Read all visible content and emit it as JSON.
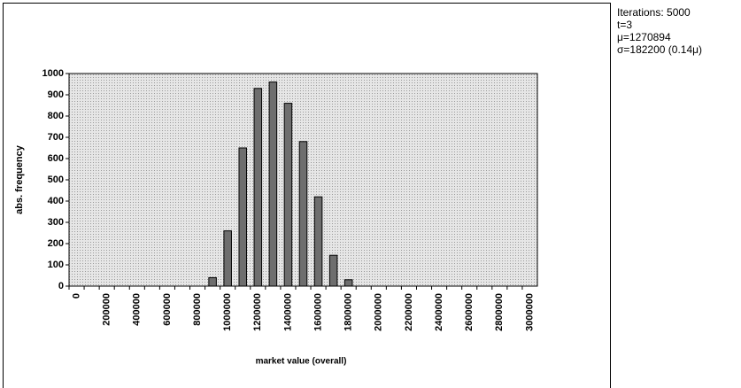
{
  "chart_data": {
    "type": "bar",
    "xlabel": "market value (overall)",
    "ylabel": "abs. frequency",
    "categories": [
      "0",
      null,
      "200000",
      null,
      "400000",
      null,
      "600000",
      null,
      "800000",
      null,
      "1000000",
      null,
      "1200000",
      null,
      "1400000",
      null,
      "1600000",
      null,
      "1800000",
      null,
      "2000000",
      null,
      "2200000",
      null,
      "2400000",
      null,
      "2600000",
      null,
      "2800000",
      null,
      "3000000"
    ],
    "values": [
      0,
      0,
      0,
      0,
      0,
      0,
      0,
      0,
      0,
      40,
      260,
      650,
      930,
      960,
      860,
      680,
      420,
      145,
      30,
      0,
      0,
      0,
      0,
      0,
      0,
      0,
      0,
      0,
      0,
      0,
      0
    ],
    "color": "#6e6e6e",
    "ylim": [
      0,
      1000
    ],
    "yticks": [
      0,
      100,
      200,
      300,
      400,
      500,
      600,
      700,
      800,
      900,
      1000
    ],
    "annotations": [
      "Iterations: 5000",
      "t=3",
      "μ=1270894",
      "σ=182200 (0.14μ)"
    ]
  }
}
